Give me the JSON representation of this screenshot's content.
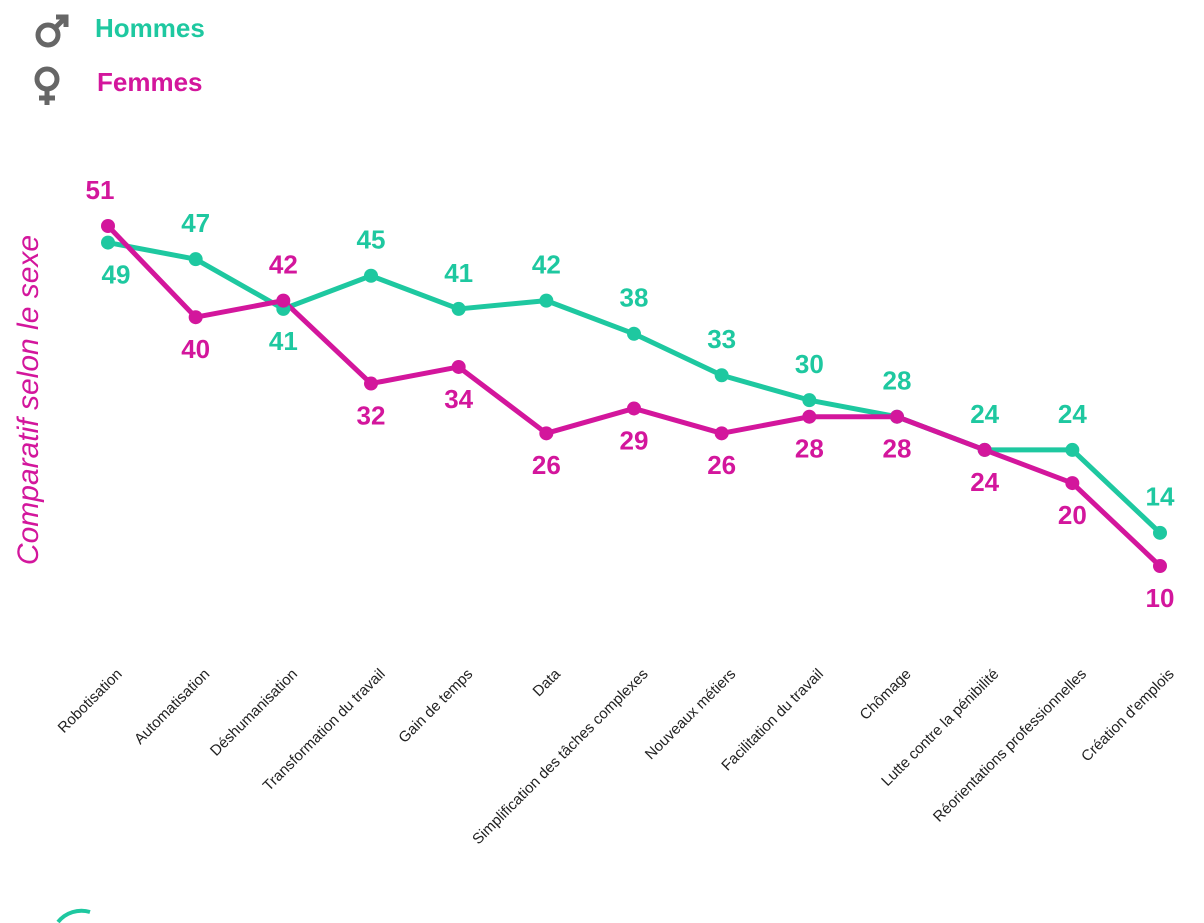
{
  "chart_data": {
    "type": "line",
    "title": "Comparatif selon le sexe",
    "categories": [
      "Robotisation",
      "Automatisation",
      "Déshumanisation",
      "Transformation du travail",
      "Gain de temps",
      "Data",
      "Simplification des tâches complexes",
      "Nouveaux métiers",
      "Facilitation du travail",
      "Chômage",
      "Lutte contre la pénibilité",
      "Réorientations professionnelles",
      "Création d'emplois"
    ],
    "series": [
      {
        "name": "Hommes",
        "color": "#1ec8a0",
        "values": [
          49,
          47,
          41,
          45,
          41,
          42,
          38,
          33,
          30,
          28,
          24,
          24,
          14
        ]
      },
      {
        "name": "Femmes",
        "color": "#d3169c",
        "values": [
          51,
          40,
          42,
          32,
          34,
          26,
          29,
          26,
          28,
          28,
          24,
          20,
          10
        ]
      }
    ],
    "legend": "top-left"
  }
}
